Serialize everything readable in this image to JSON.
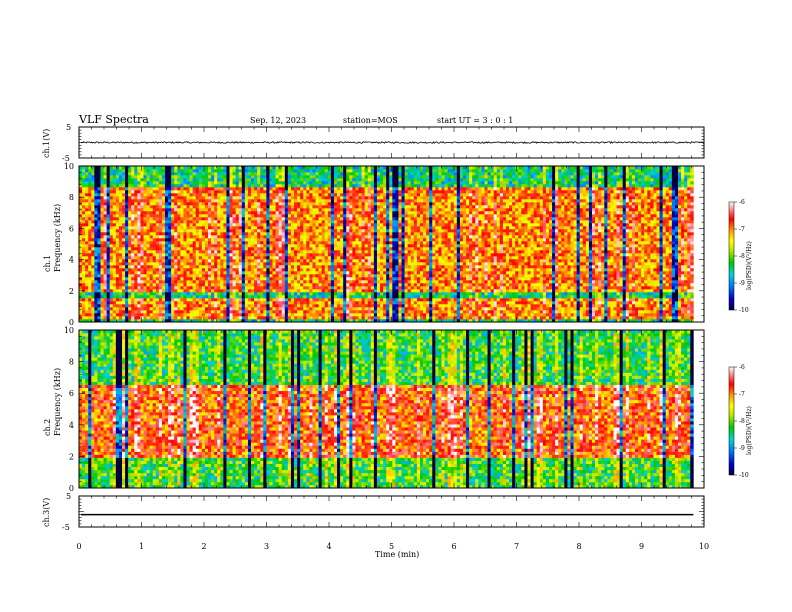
{
  "header": {
    "title": "VLF Spectra",
    "date": "Sep. 12, 2023",
    "station": "station=MOS",
    "start": "start UT =  3 : 0 : 1"
  },
  "chart_data": [
    {
      "type": "line",
      "panel": "waveform-ch1",
      "ylabel": "ch.1(V)",
      "ylim": [
        -5,
        5
      ],
      "yticks": [
        "5",
        "-5"
      ],
      "baseline_v": 0.0,
      "noise_amplitude_v": 0.25,
      "xlim": [
        0,
        10
      ]
    },
    {
      "type": "heatmap",
      "panel": "spectrogram-ch1",
      "ylabel": "ch.1 Frequency (kHz)",
      "ylim": [
        0,
        10
      ],
      "yticks": [
        "0",
        "2",
        "4",
        "6",
        "8",
        "10"
      ],
      "xlim": [
        0,
        9.83
      ],
      "colorbar": {
        "label": "log(PSD)(V²/Hz)",
        "range": [
          -10,
          -6
        ],
        "ticks": [
          "-6",
          "-7",
          "-8",
          "-9",
          "-10"
        ]
      },
      "bands_khz": [
        [
          0,
          0.2
        ],
        [
          1.6,
          2.0
        ],
        [
          8.6,
          10
        ]
      ],
      "typical_log_psd": -7.2
    },
    {
      "type": "heatmap",
      "panel": "spectrogram-ch2",
      "ylabel": "ch.2 Frequency (kHz)",
      "ylim": [
        0,
        10
      ],
      "yticks": [
        "0",
        "2",
        "4",
        "6",
        "8",
        "10"
      ],
      "xlim": [
        0,
        9.83
      ],
      "colorbar": {
        "label": "log(PSD)(V²/Hz)",
        "range": [
          -10,
          -6
        ],
        "ticks": [
          "-6",
          "-7",
          "-8",
          "-9",
          "-10"
        ]
      },
      "bands_khz": [
        [
          0,
          2.0
        ],
        [
          6.5,
          10
        ]
      ],
      "typical_log_psd": -7.0
    },
    {
      "type": "line",
      "panel": "waveform-ch3",
      "ylabel": "ch.3(V)",
      "ylim": [
        -5,
        5
      ],
      "yticks": [
        "5",
        "-5"
      ],
      "baseline_v": -1.0,
      "noise_amplitude_v": 0.0,
      "xlim": [
        0,
        9.83
      ]
    }
  ],
  "xaxis": {
    "label": "Time (min)",
    "ticks": [
      "0",
      "1",
      "2",
      "3",
      "4",
      "5",
      "6",
      "7",
      "8",
      "9",
      "10"
    ],
    "range": [
      0,
      10
    ]
  },
  "colors": {
    "ink": "#000000",
    "colormap": [
      "#000040",
      "#0000c8",
      "#0078ff",
      "#00d2d2",
      "#00c800",
      "#b4e600",
      "#ffff00",
      "#ff9600",
      "#ff0000",
      "#ff8c8c",
      "#ffffff"
    ]
  }
}
